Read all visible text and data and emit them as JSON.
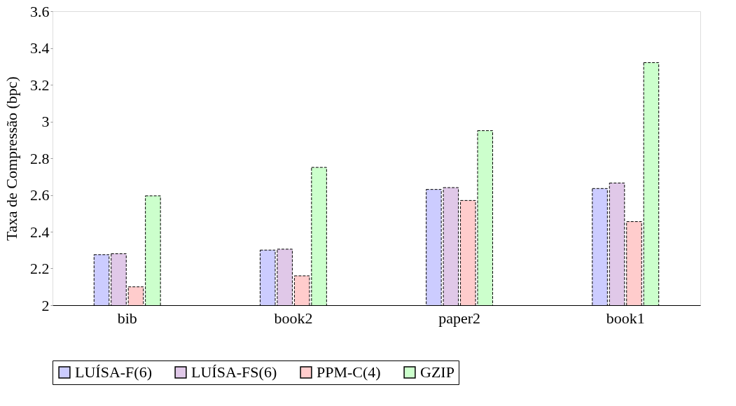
{
  "chart_data": {
    "type": "bar",
    "ylabel": "Taxa de Compressão (bpc)",
    "categories": [
      "bib",
      "book2",
      "paper2",
      "book1"
    ],
    "series": [
      {
        "name": "LUÍSA-F(6)",
        "color": "#ccccff",
        "values": [
          2.275,
          2.3,
          2.63,
          2.635
        ]
      },
      {
        "name": "LUÍSA-FS(6)",
        "color": "#e0c8e8",
        "values": [
          2.28,
          2.305,
          2.64,
          2.665
        ]
      },
      {
        "name": "PPM-C(4)",
        "color": "#ffcccc",
        "values": [
          2.1,
          2.16,
          2.57,
          2.455
        ]
      },
      {
        "name": "GZIP",
        "color": "#ccffcc",
        "values": [
          2.595,
          2.75,
          2.95,
          3.32
        ]
      }
    ],
    "ylim": [
      2,
      3.6
    ],
    "yticks": [
      2,
      2.2,
      2.4,
      2.6,
      2.8,
      3,
      3.2,
      3.4,
      3.6
    ],
    "legend": "bottom"
  }
}
